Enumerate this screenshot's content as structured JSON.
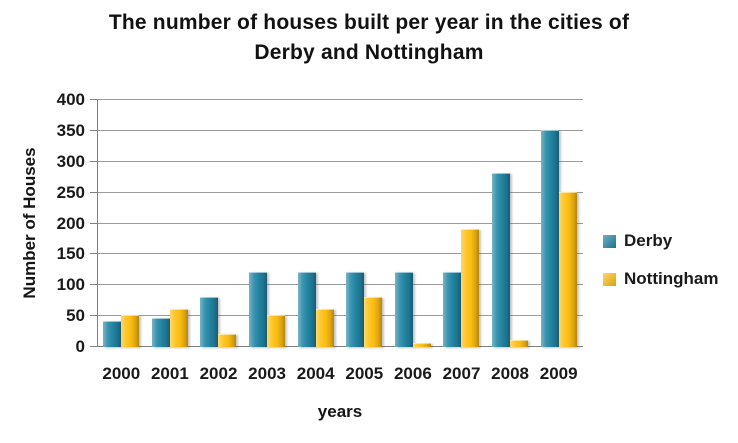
{
  "chart_data": {
    "type": "bar",
    "title": "The number of houses built per year in the cities of Derby and Nottingham",
    "title_lines": [
      "The number of houses built per year in the cities of",
      "Derby and Nottingham"
    ],
    "xlabel": "years",
    "ylabel": "Number of Houses",
    "categories": [
      "2000",
      "2001",
      "2002",
      "2003",
      "2004",
      "2005",
      "2006",
      "2007",
      "2008",
      "2009"
    ],
    "series": [
      {
        "name": "Derby",
        "color": "#2386A5",
        "values": [
          40,
          45,
          80,
          120,
          120,
          120,
          120,
          120,
          280,
          350
        ]
      },
      {
        "name": "Nottingham",
        "color": "#FFC013",
        "values": [
          50,
          60,
          20,
          50,
          60,
          80,
          5,
          190,
          10,
          250
        ]
      }
    ],
    "ylim": [
      0,
      400
    ],
    "ytick_step": 50,
    "grid": true,
    "legend_position": "right"
  },
  "colors": {
    "derby": "#2386A5",
    "nottingham": "#FFC013",
    "gridline": "#9B9B9B",
    "axis": "#7F7F7F",
    "text": "#1A1A1A",
    "background": "#FFFFFF"
  }
}
